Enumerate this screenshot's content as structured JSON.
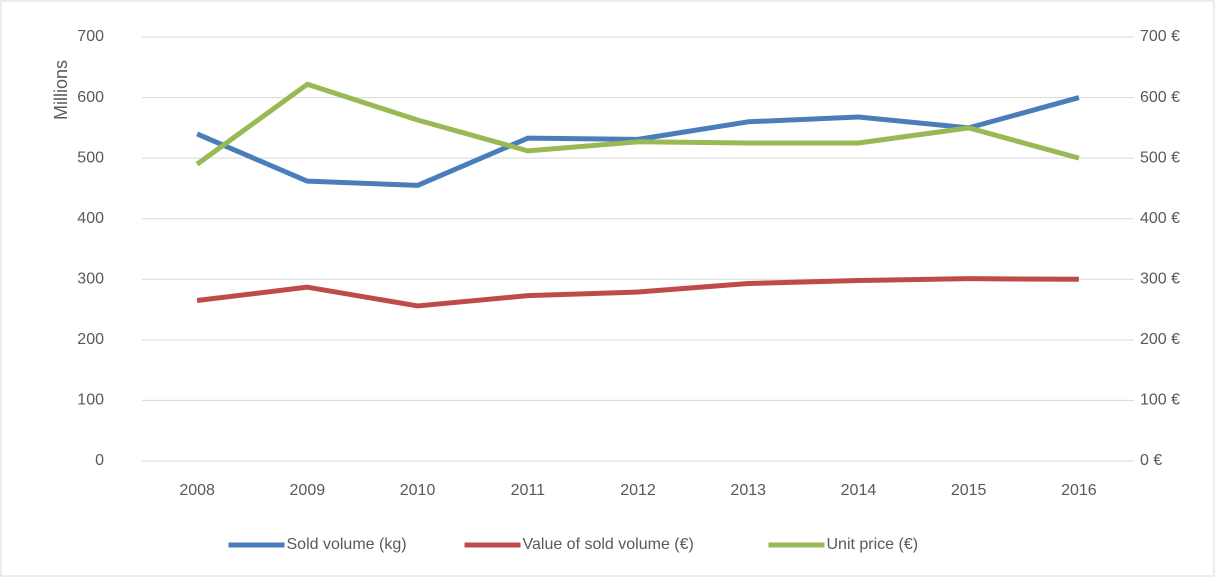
{
  "chart_data": {
    "type": "line",
    "y_axis_label": "Millions",
    "categories": [
      "2008",
      "2009",
      "2010",
      "2011",
      "2012",
      "2013",
      "2014",
      "2015",
      "2016"
    ],
    "series": [
      {
        "name": "Sold volume (kg)",
        "color": "#4a7ebb",
        "values": [
          540,
          462,
          455,
          533,
          531,
          560,
          568,
          550,
          600
        ]
      },
      {
        "name": "Value of sold volume (€)",
        "color": "#be4b48",
        "values": [
          265,
          287,
          256,
          273,
          279,
          293,
          298,
          301,
          300
        ]
      },
      {
        "name": "Unit price (€)",
        "color": "#98b954",
        "axis": "y2",
        "values": [
          490,
          622,
          563,
          512,
          527,
          525,
          525,
          550,
          500
        ]
      }
    ],
    "ylim": [
      0,
      700
    ],
    "yticks": [
      0,
      100,
      200,
      300,
      400,
      500,
      600,
      700
    ],
    "y2lim": [
      0,
      700
    ],
    "y2ticks": [
      {
        "value": 0,
        "label": "0 €"
      },
      {
        "value": 100,
        "label": "100 €"
      },
      {
        "value": 200,
        "label": "200 €"
      },
      {
        "value": 300,
        "label": "300 €"
      },
      {
        "value": 400,
        "label": "400 €"
      },
      {
        "value": 500,
        "label": "500 €"
      },
      {
        "value": 600,
        "label": "600 €"
      },
      {
        "value": 700,
        "label": "700 €"
      }
    ],
    "grid": true,
    "legend": "bottom"
  }
}
